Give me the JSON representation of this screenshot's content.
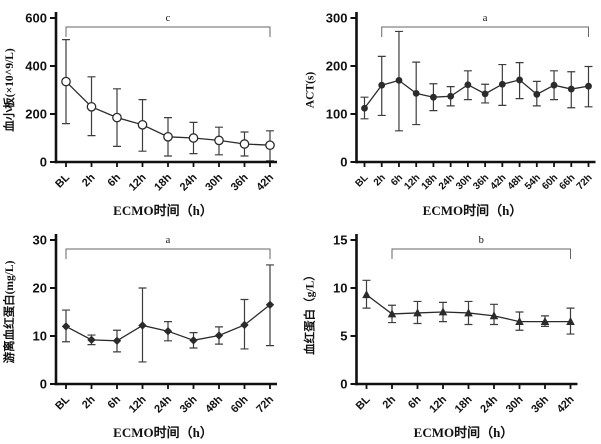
{
  "figure": {
    "background": "#ffffff",
    "colors": {
      "axis": "#111111",
      "line": "#2b2b2b",
      "error": "#3d3d3d",
      "bracket": "#666666",
      "text": "#111111"
    }
  },
  "chart_data": [
    {
      "id": "platelet",
      "type": "line",
      "ylabel": "血小板(×10^9/L)",
      "xlabel": "ECMO时间（h）",
      "categories": [
        "BL",
        "2h",
        "6h",
        "12h",
        "18h",
        "24h",
        "30h",
        "36h",
        "42h"
      ],
      "values": [
        335,
        230,
        185,
        155,
        105,
        100,
        90,
        75,
        70
      ],
      "err_low": [
        160,
        110,
        65,
        45,
        25,
        35,
        30,
        25,
        5
      ],
      "err_high": [
        510,
        355,
        305,
        260,
        185,
        165,
        145,
        125,
        130
      ],
      "ylim": [
        0,
        600
      ],
      "yticks": [
        0,
        200,
        400,
        600
      ],
      "marker": "circle-open",
      "legend": "none",
      "grid": false,
      "bracket": {
        "label": "c",
        "from": 0,
        "to": 8
      }
    },
    {
      "id": "act",
      "type": "line",
      "ylabel": "ACT(s)",
      "xlabel": "ECMO时间（h）",
      "categories": [
        "BL",
        "2h",
        "6h",
        "12h",
        "18h",
        "24h",
        "30h",
        "36h",
        "42h",
        "48h",
        "54h",
        "60h",
        "66h",
        "72h"
      ],
      "values": [
        112,
        160,
        170,
        143,
        135,
        137,
        161,
        142,
        162,
        171,
        141,
        160,
        152,
        158
      ],
      "err_low": [
        90,
        97,
        65,
        78,
        107,
        117,
        130,
        123,
        118,
        132,
        117,
        130,
        113,
        115
      ],
      "err_high": [
        135,
        220,
        272,
        208,
        163,
        157,
        190,
        162,
        203,
        207,
        168,
        190,
        188,
        199
      ],
      "ylim": [
        0,
        300
      ],
      "yticks": [
        0,
        100,
        200,
        300
      ],
      "marker": "circle",
      "legend": "none",
      "grid": false,
      "bracket": {
        "label": "a",
        "from": 1,
        "to": 13
      }
    },
    {
      "id": "free-hemoglobin",
      "type": "line",
      "ylabel": "游离血红蛋白(mg/L)",
      "xlabel": "ECMO时间（h）",
      "categories": [
        "BL",
        "2h",
        "6h",
        "12h",
        "24h",
        "36h",
        "48h",
        "60h",
        "72h"
      ],
      "values": [
        12.0,
        9.2,
        9.0,
        12.2,
        11.0,
        9.1,
        10.1,
        12.3,
        16.5
      ],
      "err_low": [
        8.8,
        8.2,
        6.7,
        4.6,
        9.0,
        7.5,
        8.3,
        7.3,
        8.0
      ],
      "err_high": [
        15.4,
        10.2,
        11.2,
        20.0,
        13.0,
        10.7,
        11.9,
        17.6,
        24.8
      ],
      "ylim": [
        0,
        30
      ],
      "yticks": [
        0,
        10,
        20,
        30
      ],
      "marker": "diamond",
      "legend": "none",
      "grid": false,
      "bracket": {
        "label": "a",
        "from": 0,
        "to": 8
      }
    },
    {
      "id": "hemoglobin",
      "type": "line",
      "ylabel": "血红蛋白（g/L）",
      "xlabel": "ECMO时间（h）",
      "categories": [
        "BL",
        "2h",
        "6h",
        "12h",
        "18h",
        "24h",
        "30h",
        "36h",
        "42h"
      ],
      "values": [
        9.3,
        7.3,
        7.4,
        7.5,
        7.4,
        7.1,
        6.5,
        6.5,
        6.5
      ],
      "err_low": [
        7.9,
        6.4,
        6.3,
        6.5,
        6.2,
        6.2,
        5.6,
        6.0,
        5.2
      ],
      "err_high": [
        10.8,
        8.2,
        8.6,
        8.5,
        8.6,
        8.3,
        7.5,
        7.1,
        7.9
      ],
      "ylim": [
        0,
        15
      ],
      "yticks": [
        0,
        5,
        10,
        15
      ],
      "marker": "triangle",
      "legend": "none",
      "grid": false,
      "bracket": {
        "label": "b",
        "from": 1,
        "to": 8
      }
    }
  ]
}
